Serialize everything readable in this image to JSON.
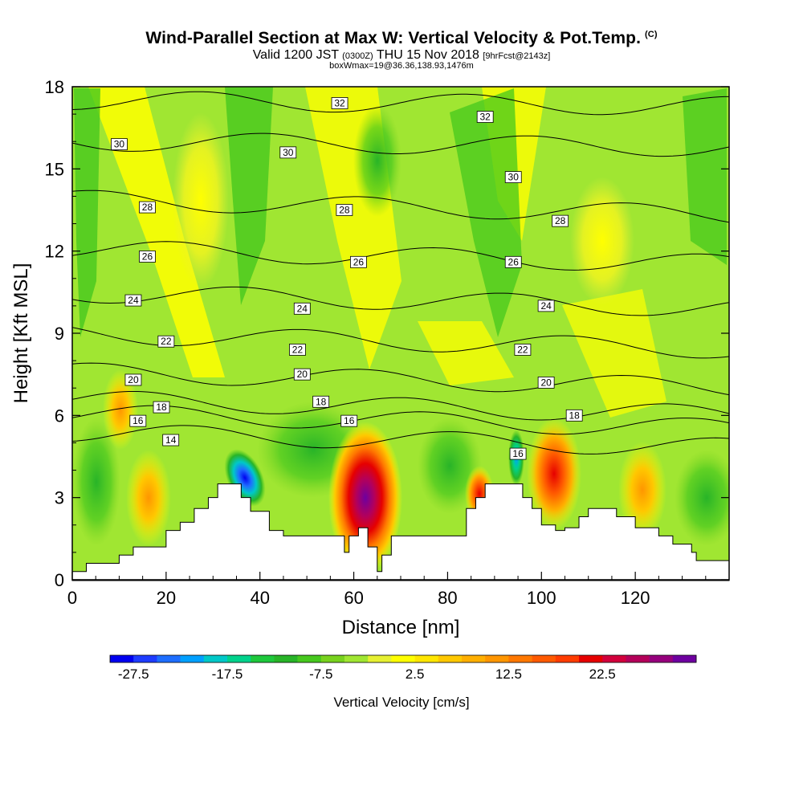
{
  "header": {
    "title": "Wind-Parallel Section at Max W: Vertical Velocity & Pot.Temp.",
    "title_corner": "(C)",
    "valid_prefix": "Valid 1200 JST",
    "valid_zulu": "(0300Z)",
    "valid_date": "THU 15 Nov 2018",
    "forecast_tag": "[9hrFcst@2143z]",
    "box_info": "boxWmax=19@36.36,138.93,1476m"
  },
  "chart_data": {
    "type": "heatmap",
    "xlabel": "Distance [nm]",
    "ylabel": "Height [Kft MSL]",
    "xlim": [
      0,
      140
    ],
    "ylim": [
      0,
      18
    ],
    "x_ticks": [
      "0",
      "20",
      "40",
      "60",
      "80",
      "100",
      "120"
    ],
    "y_ticks": [
      "0",
      "3",
      "6",
      "9",
      "12",
      "15",
      "18"
    ],
    "colorbar": {
      "title": "Vertical Velocity [cm/s]",
      "tick_labels": [
        "-27.5",
        "-17.5",
        "-7.5",
        "2.5",
        "12.5",
        "22.5"
      ],
      "colors": [
        "#0000f0",
        "#1e3cff",
        "#1e6eff",
        "#00a0ff",
        "#00c8c8",
        "#00d28c",
        "#1ec83c",
        "#28b428",
        "#46c81e",
        "#78d21e",
        "#a0e632",
        "#e6f032",
        "#ffff00",
        "#ffe600",
        "#ffc800",
        "#ffaf00",
        "#ff9600",
        "#ff7800",
        "#ff5a00",
        "#ff3c00",
        "#e60000",
        "#d2003c",
        "#b4005a",
        "#96007d",
        "#6e00a0"
      ]
    },
    "terrain_steps": [
      [
        0,
        0.3
      ],
      [
        3,
        0.6
      ],
      [
        10,
        0.9
      ],
      [
        13,
        1.2
      ],
      [
        20,
        1.8
      ],
      [
        23,
        2.1
      ],
      [
        26,
        2.6
      ],
      [
        29,
        3.0
      ],
      [
        31,
        3.5
      ],
      [
        36,
        3.0
      ],
      [
        38,
        2.5
      ],
      [
        42,
        1.8
      ],
      [
        45,
        1.6
      ],
      [
        58,
        1.0
      ],
      [
        59,
        1.6
      ],
      [
        61,
        1.9
      ],
      [
        63,
        1.2
      ],
      [
        65,
        0.3
      ],
      [
        66,
        0.9
      ],
      [
        68,
        1.6
      ],
      [
        80,
        1.6
      ],
      [
        84,
        2.6
      ],
      [
        86,
        3.0
      ],
      [
        88,
        3.5
      ],
      [
        96,
        3.0
      ],
      [
        98,
        2.6
      ],
      [
        100,
        2.0
      ],
      [
        103,
        1.8
      ],
      [
        105,
        1.9
      ],
      [
        108,
        2.3
      ],
      [
        110,
        2.6
      ],
      [
        116,
        2.3
      ],
      [
        120,
        1.9
      ],
      [
        125,
        1.6
      ],
      [
        128,
        1.3
      ],
      [
        132,
        1.0
      ],
      [
        133,
        0.7
      ],
      [
        140,
        0.7
      ]
    ],
    "velocity_cells": [
      {
        "x": 62,
        "y": 2.8,
        "value": 27
      },
      {
        "x": 103,
        "y": 3.8,
        "value": 20
      },
      {
        "x": 86,
        "y": 3.0,
        "value": 18
      },
      {
        "x": 36,
        "y": 3.5,
        "value": -27
      },
      {
        "x": 95,
        "y": 4.5,
        "value": -17
      },
      {
        "x": 17,
        "y": 2.5,
        "value": 12
      },
      {
        "x": 120,
        "y": 3.0,
        "value": 10
      },
      {
        "x": 10,
        "y": 6.0,
        "value": 10
      }
    ],
    "theta_contours": [
      {
        "label": "14",
        "label_x": 21,
        "label_y": 5.1
      },
      {
        "label": "16",
        "label_x": 14,
        "label_y": 5.8,
        "label_x2": 59,
        "label_y2": 5.8,
        "label_x3": 95,
        "label_y3": 4.6
      },
      {
        "label": "18",
        "label_x": 19,
        "label_y": 6.3,
        "label_x2": 53,
        "label_y2": 6.5,
        "label_x3": 107,
        "label_y3": 6.0
      },
      {
        "label": "20",
        "label_x": 13,
        "label_y": 7.3,
        "label_x2": 49,
        "label_y2": 7.5,
        "label_x3": 101,
        "label_y3": 7.2
      },
      {
        "label": "22",
        "label_x": 20,
        "label_y": 8.7,
        "label_x2": 48,
        "label_y2": 8.4,
        "label_x3": 96,
        "label_y3": 8.4
      },
      {
        "label": "24",
        "label_x": 13,
        "label_y": 10.2,
        "label_x2": 49,
        "label_y2": 9.9,
        "label_x3": 101,
        "label_y3": 10.0
      },
      {
        "label": "26",
        "label_x": 16,
        "label_y": 11.8,
        "label_x2": 61,
        "label_y2": 11.6,
        "label_x3": 94,
        "label_y3": 11.6
      },
      {
        "label": "28",
        "label_x": 16,
        "label_y": 13.6,
        "label_x2": 58,
        "label_y2": 13.5,
        "label_x3": 104,
        "label_y3": 13.1
      },
      {
        "label": "30",
        "label_x": 10,
        "label_y": 15.9,
        "label_x2": 46,
        "label_y2": 15.6,
        "label_x3": 94,
        "label_y3": 14.7
      },
      {
        "label": "32",
        "label_x": 57,
        "label_y": 17.4,
        "label_x2": 88,
        "label_y2": 16.9
      }
    ]
  }
}
